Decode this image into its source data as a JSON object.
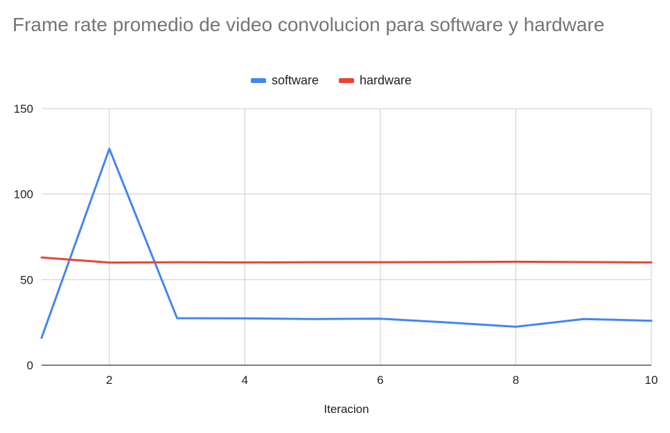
{
  "chart_data": {
    "type": "line",
    "title": "Frame rate promedio de video convolucion para software y hardware",
    "xlabel": "Iteracion",
    "ylabel": "",
    "xlim": [
      1,
      10
    ],
    "ylim": [
      0,
      150
    ],
    "x_ticks": [
      "2",
      "4",
      "6",
      "8",
      "10"
    ],
    "y_ticks": [
      "0",
      "50",
      "100",
      "150"
    ],
    "grid": true,
    "legend_position": "top",
    "x": [
      1,
      2,
      3,
      4,
      5,
      6,
      7,
      8,
      9,
      10
    ],
    "series": [
      {
        "name": "software",
        "color": "#4285f4",
        "values": [
          16,
          126.5,
          27.5,
          27.4,
          27,
          27.2,
          25,
          22.5,
          27,
          26
        ]
      },
      {
        "name": "hardware",
        "color": "#ea4335",
        "values": [
          63,
          60,
          60.2,
          60.1,
          60.2,
          60.2,
          60.3,
          60.5,
          60.3,
          60.1
        ]
      }
    ]
  }
}
